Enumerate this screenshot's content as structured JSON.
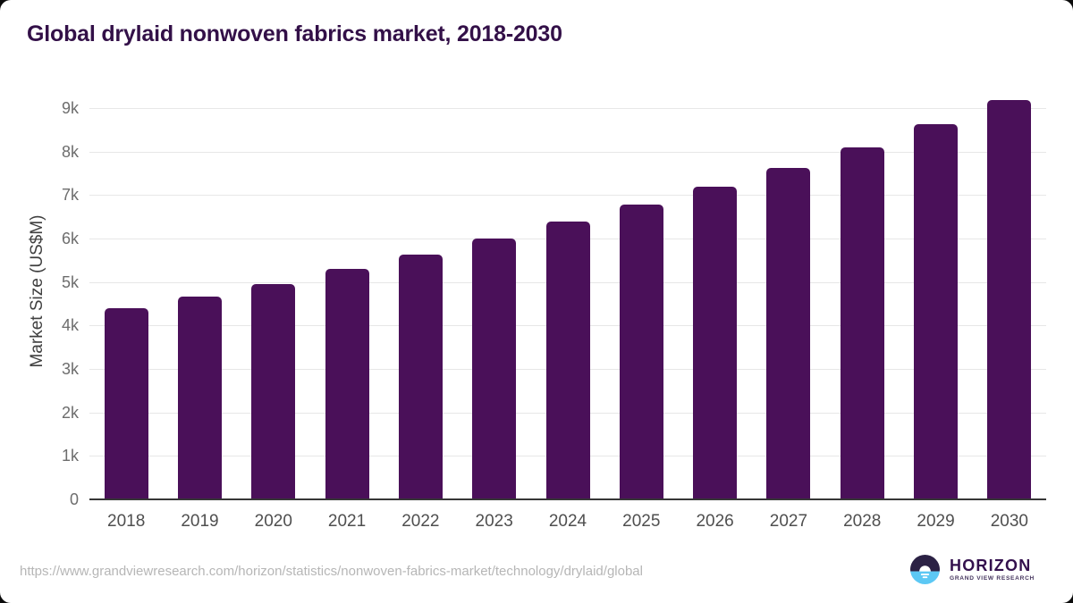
{
  "chart_data": {
    "type": "bar",
    "title": "Global drylaid nonwoven fabrics market, 2018-2030",
    "xlabel": "",
    "ylabel": "Market Size (US$M)",
    "categories": [
      "2018",
      "2019",
      "2020",
      "2021",
      "2022",
      "2023",
      "2024",
      "2025",
      "2026",
      "2027",
      "2028",
      "2029",
      "2030"
    ],
    "values": [
      4400,
      4670,
      4960,
      5300,
      5630,
      6010,
      6390,
      6780,
      7200,
      7630,
      8100,
      8630,
      9180
    ],
    "ytick_values": [
      0,
      1000,
      2000,
      3000,
      4000,
      5000,
      6000,
      7000,
      8000,
      9000
    ],
    "ytick_labels": [
      "0",
      "1k",
      "2k",
      "3k",
      "4k",
      "5k",
      "6k",
      "7k",
      "8k",
      "9k"
    ],
    "ylim": [
      0,
      9400
    ],
    "grid": "horizontal",
    "legend": "none",
    "bar_color": "#4a1059",
    "grid_color": "#e7e7e7",
    "axis_color": "#373737"
  },
  "colors": {
    "title": "#331048",
    "bar": "#4a1059",
    "logo_dark": "#2b2144",
    "logo_blue": "#5cc8f4",
    "url_gray": "#b6b6b6"
  },
  "footer": {
    "source_url": "https://www.grandviewresearch.com/horizon/statistics/nonwoven-fabrics-market/technology/drylaid/global",
    "logo": {
      "icon": "horizon-sun-icon",
      "name": "HORIZON",
      "subtitle": "GRAND VIEW RESEARCH",
      "colors": {
        "dark": "#2b2144",
        "blue": "#5cc8f4",
        "white": "#ffffff"
      }
    }
  }
}
